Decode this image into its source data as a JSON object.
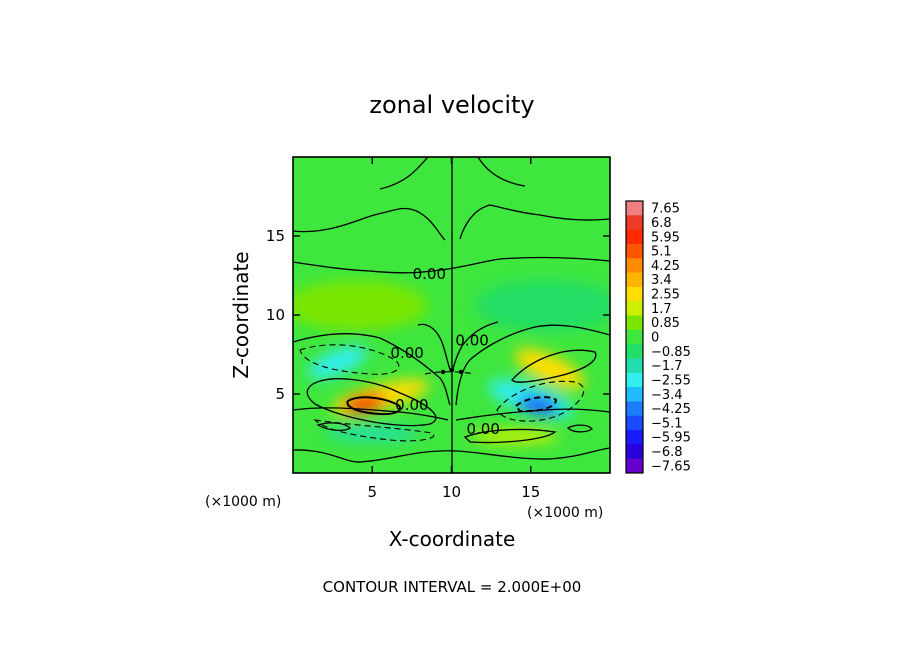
{
  "chart_data": {
    "type": "heatmap",
    "title": "zonal velocity",
    "xlabel": "X-coordinate",
    "ylabel": "Z-coordinate",
    "x_unit_note": "(×1000 m)",
    "y_unit_note": "(×1000 m)",
    "xlim": [
      0,
      20
    ],
    "ylim": [
      0,
      20
    ],
    "x_ticks": [
      5,
      10,
      15
    ],
    "y_ticks": [
      5,
      10,
      15
    ],
    "grid": false,
    "colorbar": {
      "placement": "right",
      "levels": [
        "7.65",
        "6.8",
        "5.95",
        "5.1",
        "4.25",
        "3.4",
        "2.55",
        "1.7",
        "0.85",
        "0",
        "−0.85",
        "−1.7",
        "−2.55",
        "−3.4",
        "−4.25",
        "−5.1",
        "−5.95",
        "−6.8",
        "−7.65"
      ],
      "colors": [
        "#f08080",
        "#ee3a28",
        "#ff2a00",
        "#ff5500",
        "#ff8c00",
        "#ffb400",
        "#ffdd00",
        "#ccf000",
        "#7ae600",
        "#3ee63e",
        "#22dd66",
        "#22ddb0",
        "#33eeee",
        "#22bbff",
        "#1b7dff",
        "#1a4cff",
        "#1a1aff",
        "#2a00dd",
        "#6600cc"
      ]
    },
    "contour_labels": [
      {
        "text": "0.00",
        "x": 8.6,
        "z": 12.6
      },
      {
        "text": "0.00",
        "x": 7.2,
        "z": 7.6
      },
      {
        "text": "0.00",
        "x": 11.3,
        "z": 8.4
      },
      {
        "text": "0.00",
        "x": 7.5,
        "z": 4.3
      },
      {
        "text": "0.00",
        "x": 12.0,
        "z": 2.8
      }
    ],
    "features": [
      {
        "name": "left positive maximum",
        "x": 4.5,
        "z": 4.4,
        "value": 6.0,
        "sx": 1.4,
        "sz": 0.55,
        "angle_deg": -12
      },
      {
        "name": "left positive band",
        "x": 5.5,
        "z": 4.8,
        "value": 2.2,
        "sx": 3.2,
        "sz": 0.8,
        "angle_deg": -15
      },
      {
        "name": "right negative minimum",
        "x": 15.5,
        "z": 4.3,
        "value": -5.5,
        "sx": 1.3,
        "sz": 0.55,
        "angle_deg": 12
      },
      {
        "name": "right negative band",
        "x": 15.0,
        "z": 4.7,
        "value": -2.4,
        "sx": 2.8,
        "sz": 0.9,
        "angle_deg": 18
      },
      {
        "name": "left upper negative lobe",
        "x": 2.8,
        "z": 7.0,
        "value": -2.4,
        "sx": 2.0,
        "sz": 0.75,
        "angle_deg": -22
      },
      {
        "name": "right upper positive lobe",
        "x": 16.2,
        "z": 6.6,
        "value": 2.4,
        "sx": 2.4,
        "sz": 0.85,
        "angle_deg": 25
      },
      {
        "name": "left lower negative band",
        "x": 5.0,
        "z": 2.5,
        "value": -1.9,
        "sx": 3.0,
        "sz": 0.45,
        "angle_deg": 0
      },
      {
        "name": "right lower positive band",
        "x": 14.0,
        "z": 2.3,
        "value": 1.7,
        "sx": 2.8,
        "sz": 0.45,
        "angle_deg": 0
      },
      {
        "name": "upper left weak positive",
        "x": 4.0,
        "z": 10.6,
        "value": 0.7,
        "sx": 4.5,
        "sz": 1.6,
        "angle_deg": 0
      },
      {
        "name": "upper right weak negative",
        "x": 16.0,
        "z": 10.6,
        "value": -0.6,
        "sx": 4.5,
        "sz": 1.6,
        "angle_deg": 0
      }
    ],
    "footer": "CONTOUR INTERVAL = 2.000E+00"
  }
}
